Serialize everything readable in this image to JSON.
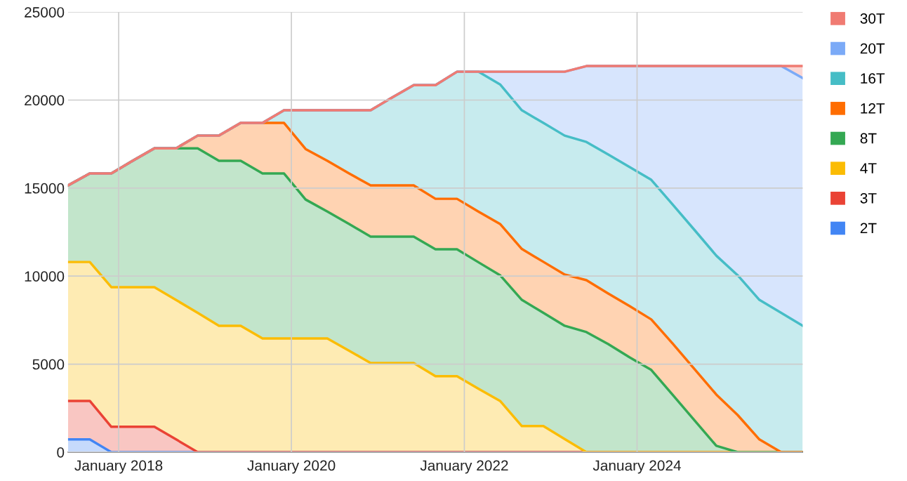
{
  "chart_data": {
    "type": "area",
    "stacked": true,
    "x": [
      "2017-06",
      "2017-09",
      "2017-12",
      "2018-03",
      "2018-06",
      "2018-09",
      "2018-12",
      "2019-03",
      "2019-06",
      "2019-09",
      "2019-12",
      "2020-03",
      "2020-06",
      "2020-09",
      "2020-12",
      "2021-03",
      "2021-06",
      "2021-09",
      "2021-12",
      "2022-03",
      "2022-06",
      "2022-09",
      "2022-12",
      "2023-03",
      "2023-06",
      "2023-09",
      "2023-12",
      "2024-03",
      "2024-06",
      "2024-09",
      "2024-12",
      "2025-03",
      "2025-06",
      "2025-09",
      "2025-12"
    ],
    "series": [
      {
        "name": "2T",
        "color": "#4285f4",
        "values": [
          720,
          720,
          0,
          0,
          0,
          0,
          0,
          0,
          0,
          0,
          0,
          0,
          0,
          0,
          0,
          0,
          0,
          0,
          0,
          0,
          0,
          0,
          0,
          0,
          0,
          0,
          0,
          0,
          0,
          0,
          0,
          0,
          0,
          0,
          0
        ]
      },
      {
        "name": "3T",
        "color": "#ea4335",
        "values": [
          2190,
          2190,
          1440,
          1440,
          1440,
          720,
          0,
          0,
          0,
          0,
          0,
          0,
          0,
          0,
          0,
          0,
          0,
          0,
          0,
          0,
          0,
          0,
          0,
          0,
          0,
          0,
          0,
          0,
          0,
          0,
          0,
          0,
          0,
          0,
          0
        ]
      },
      {
        "name": "4T",
        "color": "#fbbc04",
        "values": [
          7890,
          7890,
          7930,
          7930,
          7930,
          7920,
          7910,
          7180,
          7180,
          6460,
          6460,
          6460,
          6460,
          5760,
          5060,
          5060,
          5060,
          4310,
          4310,
          3610,
          2910,
          1480,
          1480,
          740,
          0,
          0,
          0,
          0,
          0,
          0,
          0,
          0,
          0,
          0,
          0
        ]
      },
      {
        "name": "8T",
        "color": "#34a853",
        "values": [
          4350,
          5030,
          6460,
          7180,
          7890,
          8620,
          9350,
          9370,
          9370,
          9370,
          9370,
          7890,
          7210,
          7200,
          7180,
          7180,
          7180,
          7210,
          7210,
          7180,
          7140,
          7170,
          6430,
          6440,
          6820,
          6140,
          5380,
          4670,
          3230,
          1790,
          360,
          0,
          0,
          0,
          0
        ]
      },
      {
        "name": "12T",
        "color": "#ff6d01",
        "values": [
          0,
          0,
          0,
          0,
          0,
          0,
          720,
          1430,
          2150,
          2870,
          2870,
          2870,
          2880,
          2870,
          2910,
          2910,
          2910,
          2870,
          2870,
          2880,
          2910,
          2890,
          2900,
          2910,
          2950,
          2870,
          2910,
          2870,
          2910,
          2910,
          2910,
          2110,
          720,
          0,
          0
        ]
      },
      {
        "name": "16T",
        "color": "#46bdc6",
        "values": [
          0,
          0,
          0,
          0,
          0,
          0,
          0,
          0,
          0,
          0,
          720,
          2200,
          2870,
          3590,
          4270,
          4990,
          5700,
          6460,
          7220,
          7940,
          7930,
          7880,
          7890,
          7890,
          7850,
          7900,
          7900,
          7930,
          7900,
          7900,
          7890,
          7940,
          7930,
          7910,
          7180
        ]
      },
      {
        "name": "20T",
        "color": "#7baaf7",
        "values": [
          0,
          0,
          0,
          0,
          0,
          0,
          0,
          0,
          0,
          0,
          0,
          0,
          0,
          0,
          0,
          0,
          0,
          0,
          0,
          0,
          720,
          2190,
          2910,
          3630,
          4310,
          5020,
          5740,
          6460,
          7890,
          9330,
          10770,
          11880,
          13280,
          14020,
          14070
        ]
      },
      {
        "name": "30T",
        "color": "#f07b72",
        "values": [
          0,
          0,
          0,
          0,
          0,
          0,
          0,
          0,
          0,
          0,
          0,
          0,
          0,
          0,
          0,
          0,
          0,
          0,
          0,
          0,
          0,
          0,
          0,
          0,
          0,
          0,
          0,
          0,
          0,
          0,
          0,
          0,
          0,
          0,
          680
        ]
      }
    ],
    "xlim": [
      "2017-06",
      "2025-12"
    ],
    "xticks": [
      {
        "value": "2018-01",
        "label": "January 2018"
      },
      {
        "value": "2020-01",
        "label": "January 2020"
      },
      {
        "value": "2022-01",
        "label": "January 2022"
      },
      {
        "value": "2024-01",
        "label": "January 2024"
      }
    ],
    "ylim": [
      0,
      25000
    ],
    "yticks": [
      0,
      5000,
      10000,
      15000,
      20000,
      25000
    ],
    "grid": true,
    "legend": "right"
  }
}
